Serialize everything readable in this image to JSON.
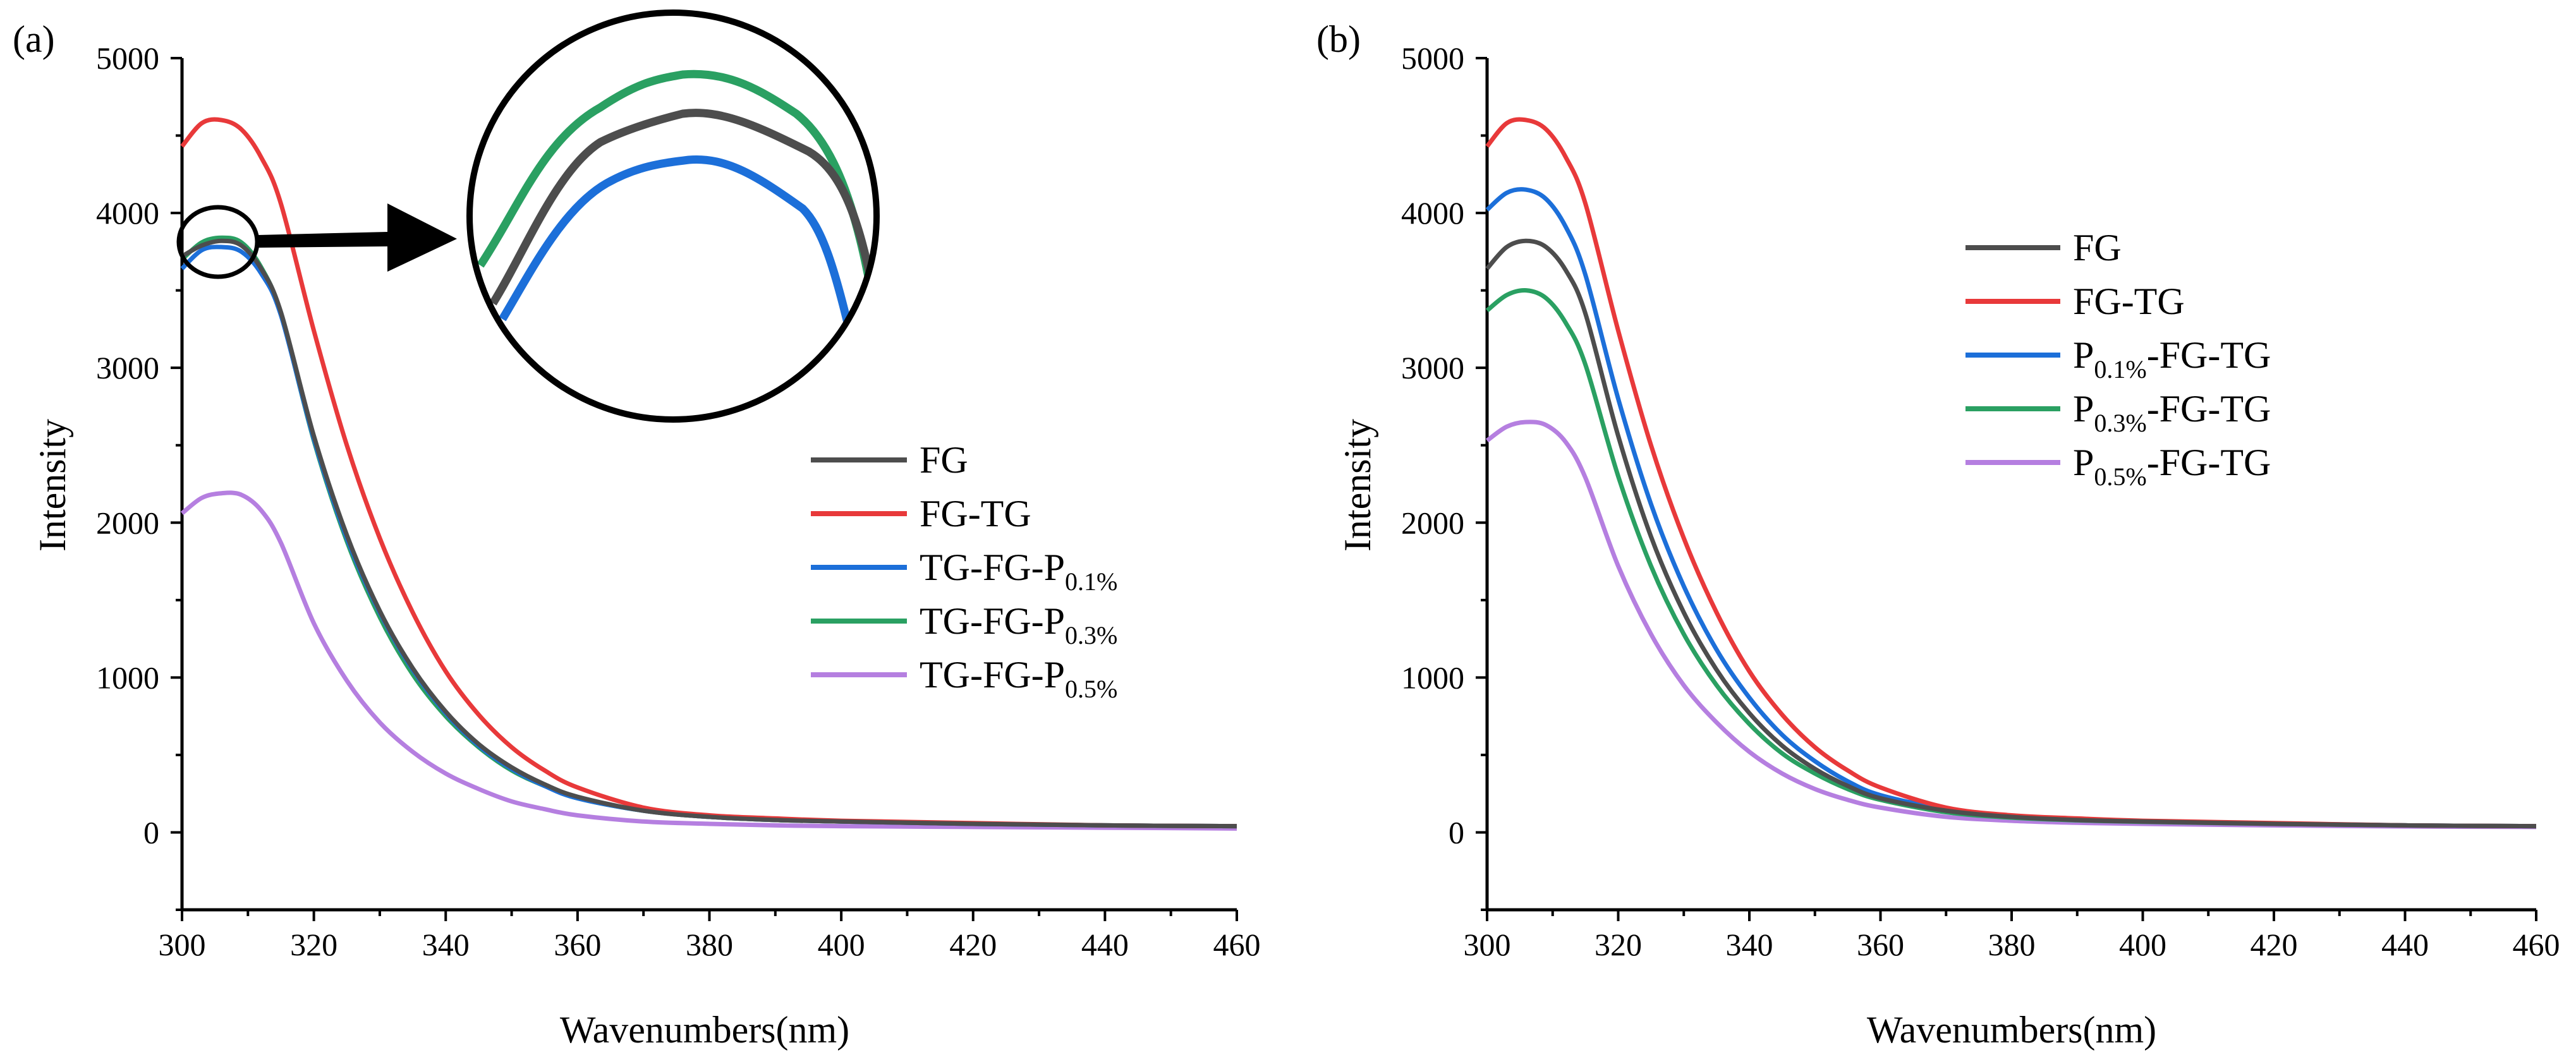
{
  "figure": {
    "label_a": "(a)",
    "label_b": "(b)"
  },
  "chart_data": [
    {
      "type": "line",
      "panel": "(a)",
      "title": "",
      "xlabel": "Wavenumbers(nm)",
      "ylabel": "Intensity",
      "xlim": [
        300,
        460
      ],
      "ylim": [
        -500,
        5000
      ],
      "xticks": [
        300,
        320,
        340,
        360,
        380,
        400,
        420,
        440,
        460
      ],
      "yticks": [
        0,
        1000,
        2000,
        3000,
        4000,
        5000
      ],
      "legend_position": "center-right",
      "annotations": [
        "zoom inset of peak region near 305 nm (circle with arrow)"
      ],
      "x": [
        300,
        303,
        306,
        309,
        312,
        315,
        320,
        325,
        330,
        335,
        340,
        345,
        350,
        355,
        360,
        370,
        380,
        390,
        400,
        420,
        440,
        460
      ],
      "series": [
        {
          "name": "FG",
          "base": "FG",
          "sub": "",
          "color": "#4d4d4d",
          "values": [
            3720,
            3790,
            3820,
            3790,
            3640,
            3360,
            2560,
            1920,
            1430,
            1060,
            780,
            570,
            420,
            310,
            230,
            140,
            100,
            80,
            70,
            55,
            45,
            40
          ]
        },
        {
          "name": "FG-TG",
          "base": "FG-TG",
          "sub": "",
          "color": "#e8393a",
          "values": [
            4430,
            4580,
            4600,
            4540,
            4360,
            4060,
            3240,
            2500,
            1900,
            1420,
            1040,
            760,
            550,
            400,
            290,
            160,
            110,
            90,
            75,
            60,
            45,
            40
          ]
        },
        {
          "name": "TG-FG-P0.1%",
          "base": "TG-FG-P",
          "sub": "0.1%",
          "color": "#1c6fd9",
          "values": [
            3640,
            3760,
            3780,
            3750,
            3610,
            3340,
            2540,
            1900,
            1420,
            1050,
            770,
            560,
            410,
            300,
            220,
            140,
            100,
            80,
            70,
            55,
            45,
            40
          ]
        },
        {
          "name": "TG-FG-P0.3%",
          "base": "TG-FG-P",
          "sub": "0.3%",
          "color": "#2aa062",
          "values": [
            3700,
            3810,
            3840,
            3810,
            3650,
            3350,
            2530,
            1880,
            1390,
            1020,
            750,
            550,
            400,
            300,
            220,
            140,
            100,
            80,
            70,
            55,
            45,
            40
          ]
        },
        {
          "name": "TG-FG-P0.5%",
          "base": "TG-FG-P",
          "sub": "0.5%",
          "color": "#b57fe0",
          "values": [
            2060,
            2160,
            2190,
            2180,
            2080,
            1870,
            1350,
            980,
            710,
            520,
            380,
            280,
            200,
            150,
            110,
            70,
            55,
            45,
            40,
            35,
            30,
            25
          ]
        }
      ]
    },
    {
      "type": "line",
      "panel": "(b)",
      "title": "",
      "xlabel": "Wavenumbers(nm)",
      "ylabel": "Intensity",
      "xlim": [
        300,
        460
      ],
      "ylim": [
        -500,
        5000
      ],
      "xticks": [
        300,
        320,
        340,
        360,
        380,
        400,
        420,
        440,
        460
      ],
      "yticks": [
        0,
        1000,
        2000,
        3000,
        4000,
        5000
      ],
      "legend_position": "top-right",
      "x": [
        300,
        303,
        306,
        309,
        312,
        315,
        320,
        325,
        330,
        335,
        340,
        345,
        350,
        355,
        360,
        370,
        380,
        390,
        400,
        420,
        440,
        460
      ],
      "series": [
        {
          "name": "FG",
          "pre": "",
          "sub": "",
          "post": "FG",
          "color": "#4d4d4d",
          "values": [
            3640,
            3780,
            3820,
            3780,
            3630,
            3350,
            2560,
            1910,
            1420,
            1050,
            770,
            560,
            410,
            300,
            220,
            140,
            100,
            80,
            70,
            55,
            45,
            40
          ]
        },
        {
          "name": "FG-TG",
          "pre": "",
          "sub": "",
          "post": "FG-TG",
          "color": "#e8393a",
          "values": [
            4430,
            4580,
            4600,
            4540,
            4360,
            4060,
            3240,
            2500,
            1900,
            1420,
            1040,
            760,
            550,
            400,
            290,
            160,
            110,
            90,
            75,
            60,
            45,
            40
          ]
        },
        {
          "name": "P0.1%-FG-TG",
          "pre": "P",
          "sub": "0.1%",
          "post": "-FG-TG",
          "color": "#1c6fd9",
          "values": [
            4020,
            4130,
            4150,
            4090,
            3910,
            3600,
            2800,
            2120,
            1590,
            1180,
            870,
            630,
            460,
            330,
            240,
            150,
            105,
            85,
            72,
            58,
            45,
            40
          ]
        },
        {
          "name": "P0.3%-FG-TG",
          "pre": "P",
          "sub": "0.3%",
          "post": "-FG-TG",
          "color": "#2aa062",
          "values": [
            3370,
            3470,
            3500,
            3450,
            3290,
            3020,
            2300,
            1720,
            1280,
            950,
            700,
            510,
            380,
            280,
            210,
            130,
            95,
            78,
            68,
            55,
            45,
            40
          ]
        },
        {
          "name": "P0.5%-FG-TG",
          "pre": "P",
          "sub": "0.5%",
          "post": "-FG-TG",
          "color": "#b57fe0",
          "values": [
            2530,
            2620,
            2650,
            2630,
            2520,
            2290,
            1720,
            1280,
            950,
            710,
            520,
            380,
            280,
            210,
            160,
            100,
            75,
            62,
            55,
            45,
            38,
            35
          ]
        }
      ]
    }
  ]
}
